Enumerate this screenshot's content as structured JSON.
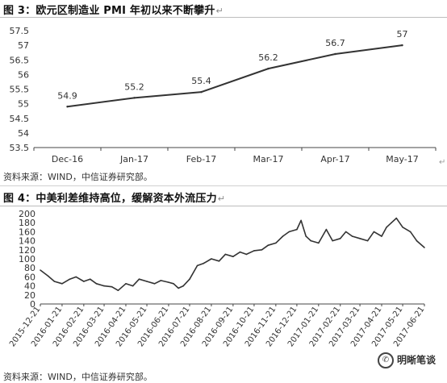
{
  "figure1": {
    "title": "图 3：欧元区制造业 PMI 年初以来不断攀升",
    "title_mark": "↵",
    "source": "资料来源：WIND，中信证券研究部。",
    "end_mark": "↵"
  },
  "figure2": {
    "title": "图 4：中美利差维持高位，缓解资本外流压力",
    "title_mark": "↵",
    "source": "资料来源：WIND，中信证券研究部。",
    "end_mark": "↵"
  },
  "watermark": {
    "text": "明晰笔谈",
    "icon": "wechat-icon"
  },
  "chart_data": [
    {
      "type": "line",
      "categories": [
        "Dec-16",
        "Jan-17",
        "Feb-17",
        "Mar-17",
        "Apr-17",
        "May-17"
      ],
      "values": [
        54.9,
        55.2,
        55.4,
        56.2,
        56.7,
        57
      ],
      "data_labels": [
        "54.9",
        "55.2",
        "55.4",
        "56.2",
        "56.7",
        "57"
      ],
      "ylim": [
        53.5,
        57.5
      ],
      "yticks": [
        "53.5",
        "54",
        "54.5",
        "55",
        "55.5",
        "56",
        "56.5",
        "57",
        "57.5"
      ],
      "grid": false,
      "color": "#333333"
    },
    {
      "type": "line",
      "x_tick_labels": [
        "2015-12-21",
        "2016-01-21",
        "2016-02-21",
        "2016-03-21",
        "2016-04-21",
        "2016-05-21",
        "2016-06-21",
        "2016-07-21",
        "2016-08-21",
        "2016-09-21",
        "2016-10-21",
        "2016-11-21",
        "2016-12-21",
        "2017-01-21",
        "2017-02-21",
        "2017-03-21",
        "2017-04-21",
        "2017-05-21",
        "2017-06-21"
      ],
      "ylim": [
        0,
        200
      ],
      "yticks": [
        "0",
        "20",
        "40",
        "60",
        "80",
        "100",
        "120",
        "140",
        "160",
        "180",
        "200"
      ],
      "grid": false,
      "color": "#333333",
      "x": [
        "2015-12-21",
        "2016-01-01",
        "2016-01-10",
        "2016-01-21",
        "2016-02-01",
        "2016-02-10",
        "2016-02-21",
        "2016-03-01",
        "2016-03-10",
        "2016-03-21",
        "2016-04-01",
        "2016-04-10",
        "2016-04-21",
        "2016-05-01",
        "2016-05-10",
        "2016-05-21",
        "2016-06-01",
        "2016-06-10",
        "2016-06-21",
        "2016-06-28",
        "2016-07-05",
        "2016-07-12",
        "2016-07-21",
        "2016-08-01",
        "2016-08-10",
        "2016-08-21",
        "2016-09-01",
        "2016-09-10",
        "2016-09-21",
        "2016-10-01",
        "2016-10-10",
        "2016-10-21",
        "2016-11-01",
        "2016-11-10",
        "2016-11-21",
        "2016-12-01",
        "2016-12-10",
        "2016-12-21",
        "2016-12-27",
        "2017-01-03",
        "2017-01-10",
        "2017-01-21",
        "2017-02-01",
        "2017-02-10",
        "2017-02-21",
        "2017-03-01",
        "2017-03-10",
        "2017-03-21",
        "2017-04-01",
        "2017-04-10",
        "2017-04-21",
        "2017-04-28",
        "2017-05-05",
        "2017-05-12",
        "2017-05-21",
        "2017-06-01",
        "2017-06-10",
        "2017-06-21"
      ],
      "values": [
        75,
        62,
        50,
        45,
        55,
        60,
        50,
        55,
        45,
        40,
        38,
        30,
        45,
        40,
        55,
        50,
        45,
        52,
        48,
        45,
        35,
        40,
        55,
        85,
        90,
        100,
        95,
        110,
        105,
        115,
        110,
        118,
        120,
        130,
        135,
        150,
        160,
        165,
        185,
        150,
        140,
        135,
        165,
        140,
        145,
        160,
        150,
        145,
        140,
        160,
        150,
        170,
        180,
        190,
        170,
        160,
        140,
        125
      ]
    }
  ]
}
